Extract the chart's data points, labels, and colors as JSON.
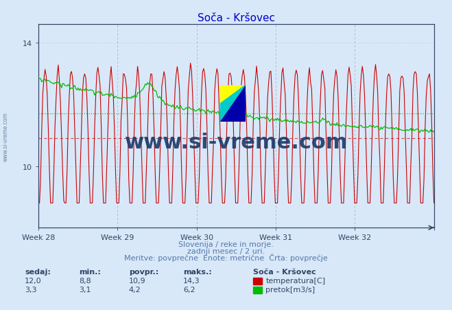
{
  "title": "Soča - Kršovec",
  "title_color": "#0000cc",
  "bg_color": "#d8e8f8",
  "plot_bg_color": "#d8e8f8",
  "x_label_weeks": [
    "Week 28",
    "Week 29",
    "Week 30",
    "Week 31",
    "Week 32"
  ],
  "temp_color": "#cc0000",
  "flow_color": "#00bb00",
  "temp_avg": 10.9,
  "flow_avg": 4.2,
  "temp_min": 8.8,
  "temp_max": 14.3,
  "temp_current": 12.0,
  "flow_min": 3.1,
  "flow_max": 6.2,
  "flow_current": 3.3,
  "temp_ylim_min": 8.0,
  "temp_ylim_max": 14.6,
  "flow_ylim_min": 0.0,
  "flow_ylim_max": 7.5,
  "n_points": 360,
  "subtitle1": "Slovenija / reke in morje.",
  "subtitle2": "zadnji mesec / 2 uri.",
  "subtitle3": "Meritve: povprečne  Enote: metrične  Črta: povprečje",
  "legend_title": "Soča - Kršovec",
  "legend_temp": "temperatura[C]",
  "legend_flow": "pretok[m3/s]",
  "watermark": "www.si-vreme.com",
  "watermark_color": "#1a3a6a",
  "sidebar_text": "www.si-vreme.com",
  "sidebar_color": "#6688aa",
  "grid_v_color": "#aaaacc",
  "grid_h_color": "#cc8888",
  "avg_temp_dash_color": "#cc3333",
  "avg_flow_dot_color": "#00bb00"
}
